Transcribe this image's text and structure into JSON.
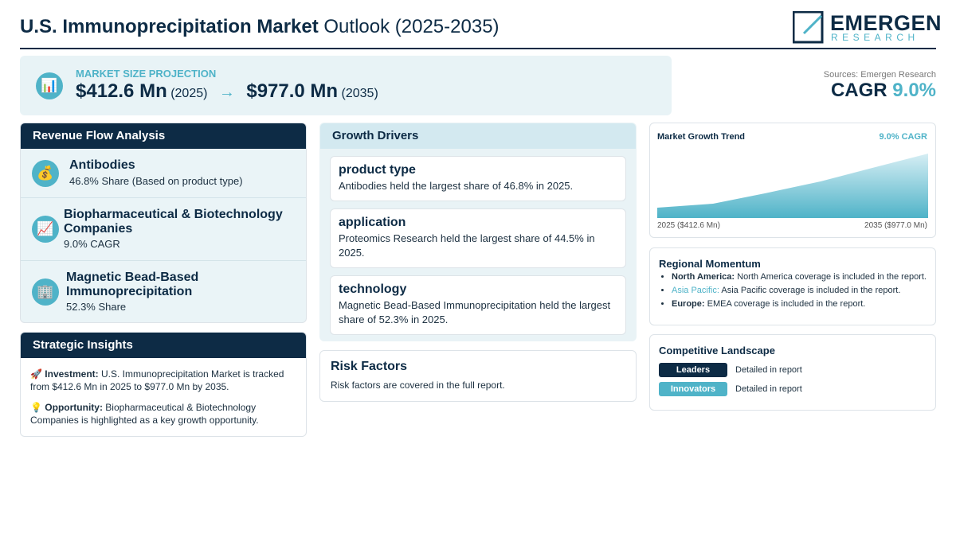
{
  "header": {
    "title_bold": "U.S. Immunoprecipitation Market",
    "title_rest": "Outlook (2025-2035)",
    "logo_name": "EMERGEN",
    "logo_sub": "RESEARCH"
  },
  "projection": {
    "icon": "📊",
    "label": "MARKET SIZE PROJECTION",
    "start_value": "$412.6 Mn",
    "start_year": "(2025)",
    "arrow": "→",
    "end_value": "$977.0 Mn",
    "end_year": "(2035)"
  },
  "cagr": {
    "source": "Sources: Emergen Research",
    "label": "CAGR",
    "value": "9.0%"
  },
  "revenue_flow": {
    "title": "Revenue Flow Analysis",
    "items": [
      {
        "icon": "💰",
        "name": "Antibodies",
        "detail": "46.8% Share (Based on product type)"
      },
      {
        "icon": "📈",
        "name": "Biopharmaceutical & Biotechnology Companies",
        "detail": "9.0% CAGR"
      },
      {
        "icon": "🏢",
        "name": "Magnetic Bead-Based Immunoprecipitation",
        "detail": "52.3% Share"
      }
    ]
  },
  "strategic_insights": {
    "title": "Strategic Insights",
    "items": [
      {
        "icon": "🚀",
        "label": "Investment:",
        "text": "U.S. Immunoprecipitation Market is tracked from $412.6 Mn in 2025 to $977.0 Mn by 2035."
      },
      {
        "icon": "💡",
        "label": "Opportunity:",
        "text": "Biopharmaceutical & Biotechnology Companies is highlighted as a key growth opportunity."
      }
    ]
  },
  "growth_drivers": {
    "title": "Growth Drivers",
    "items": [
      {
        "title": "product type",
        "text": "Antibodies held the largest share of 46.8% in 2025."
      },
      {
        "title": "application",
        "text": "Proteomics Research held the largest share of 44.5% in 2025."
      },
      {
        "title": "technology",
        "text": "Magnetic Bead-Based Immunoprecipitation held the largest share of 52.3% in 2025."
      }
    ]
  },
  "risk_factors": {
    "title": "Risk Factors",
    "text": "Risk factors are covered in the full report."
  },
  "trend": {
    "title": "Market Growth Trend",
    "badge": "9.0% CAGR",
    "start_label": "2025 ($412.6 Mn)",
    "end_label": "2035 ($977.0 Mn)"
  },
  "regional": {
    "title": "Regional Momentum",
    "items": [
      {
        "region": "North America:",
        "text": "North America coverage is included in the report."
      },
      {
        "region": "Asia Pacific:",
        "text": "Asia Pacific coverage is included in the report."
      },
      {
        "region": "Europe:",
        "text": "EMEA coverage is included in the report."
      }
    ]
  },
  "competitive": {
    "title": "Competitive Landscape",
    "items": [
      {
        "tier": "Leaders",
        "text": "Detailed in report"
      },
      {
        "tier": "Innovators",
        "text": "Detailed in report"
      }
    ]
  }
}
